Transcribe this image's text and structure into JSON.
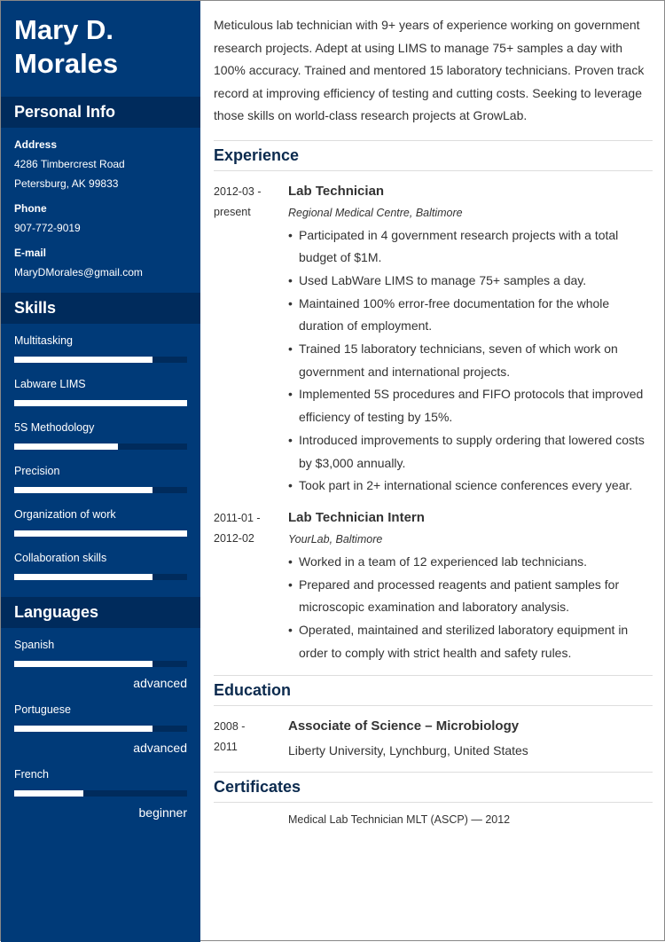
{
  "name": "Mary D. Morales",
  "sidebar": {
    "personal_title": "Personal Info",
    "address_label": "Address",
    "address_line1": "4286 Timbercrest Road",
    "address_line2": "Petersburg, AK 99833",
    "phone_label": "Phone",
    "phone": "907-772-9019",
    "email_label": "E-mail",
    "email": "MaryDMorales@gmail.com",
    "skills_title": "Skills",
    "skills": [
      {
        "name": "Multitasking",
        "level": 80
      },
      {
        "name": "Labware LIMS",
        "level": 100
      },
      {
        "name": "5S Methodology",
        "level": 60
      },
      {
        "name": "Precision",
        "level": 80
      },
      {
        "name": "Organization of work",
        "level": 100
      },
      {
        "name": "Collaboration skills",
        "level": 80
      }
    ],
    "languages_title": "Languages",
    "languages": [
      {
        "name": "Spanish",
        "level": 80,
        "label": "advanced"
      },
      {
        "name": "Portuguese",
        "level": 80,
        "label": "advanced"
      },
      {
        "name": "French",
        "level": 40,
        "label": "beginner"
      }
    ]
  },
  "summary": "Meticulous lab technician with 9+ years of experience working on government research projects. Adept at using LIMS to manage 75+ samples a day with 100% accuracy. Trained and mentored 15 laboratory technicians. Proven track record at improving efficiency of testing and cutting costs. Seeking to leverage those skills on world-class research projects at GrowLab.",
  "experience": {
    "title": "Experience",
    "jobs": [
      {
        "date1": "2012-03 -",
        "date2": "present",
        "title": "Lab Technician",
        "company": "Regional Medical Centre, Baltimore",
        "bullets": [
          "Participated in 4 government research projects with a total budget of $1M.",
          "Used LabWare LIMS to manage 75+ samples a day.",
          "Maintained 100% error-free documentation for the whole duration of employment.",
          "Trained 15 laboratory technicians, seven of which work on government and international projects.",
          "Implemented 5S procedures and FIFO protocols that improved efficiency of testing by 15%.",
          "Introduced improvements to supply ordering that lowered costs by $3,000 annually.",
          "Took part in 2+ international science conferences every year."
        ]
      },
      {
        "date1": "2011-01 -",
        "date2": "2012-02",
        "title": "Lab Technician Intern",
        "company": "YourLab, Baltimore",
        "bullets": [
          "Worked in a team of 12 experienced lab technicians.",
          "Prepared and processed reagents and patient samples for microscopic examination and laboratory analysis.",
          "Operated, maintained and sterilized laboratory equipment in order to comply with strict health and safety rules."
        ]
      }
    ]
  },
  "education": {
    "title": "Education",
    "date1": "2008 -",
    "date2": "2011",
    "degree": "Associate of Science – Microbiology",
    "school": "Liberty University, Lynchburg, United States"
  },
  "certificates": {
    "title": "Certificates",
    "item": "Medical Lab Technician MLT (ASCP) — 2012"
  }
}
